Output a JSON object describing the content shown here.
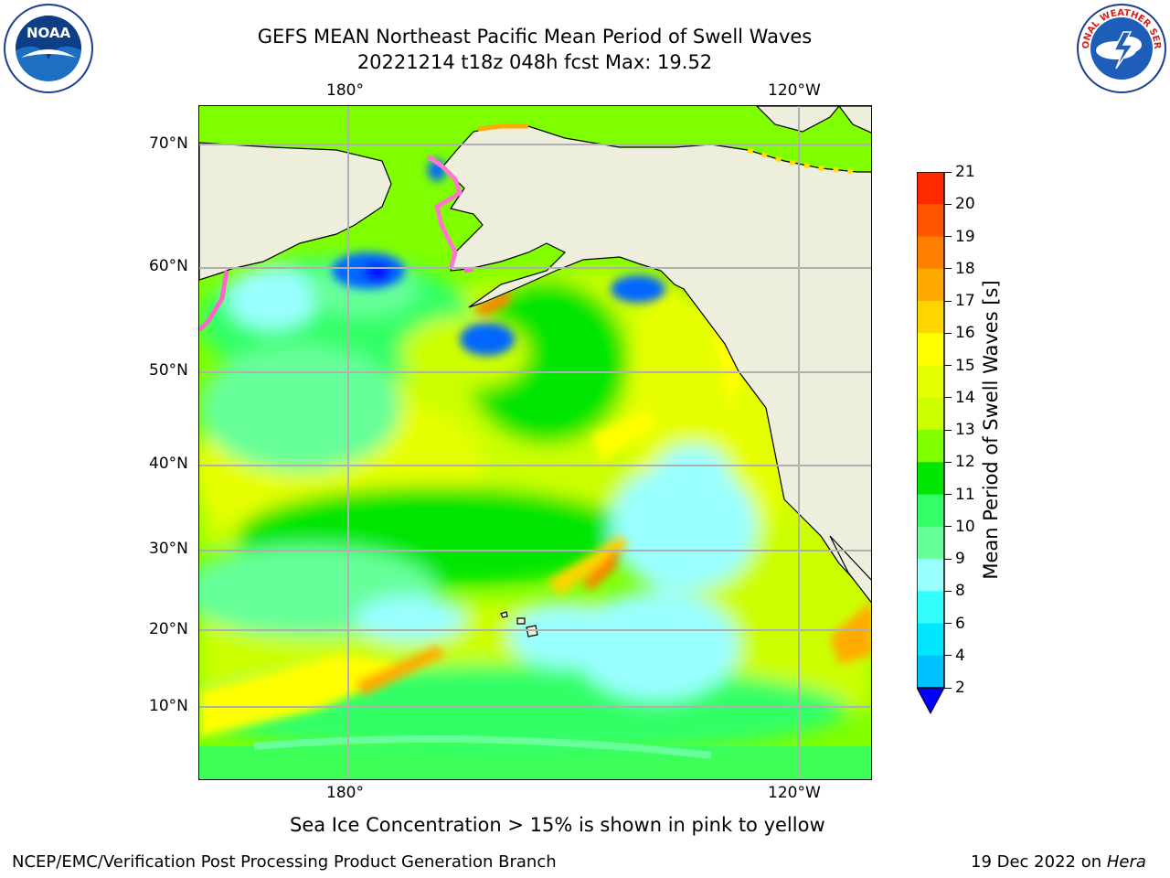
{
  "header": {
    "title_line1": "GEFS MEAN Northeast Pacific Mean Period of Swell Waves",
    "title_line2": "20221214 t18z 048h fcst   Max: 19.52",
    "left_logo_text": "NOAA",
    "left_logo_ring": "NATIONAL OCEANIC AND ATMOSPHERIC ADMINISTRATION · U.S. DEPARTMENT OF COMMERCE",
    "right_logo_ring": "NATIONAL WEATHER SERVICE"
  },
  "map": {
    "lon_labels_top": [
      "180°",
      "120°W"
    ],
    "lon_labels_bottom": [
      "180°",
      "120°W"
    ],
    "lat_labels": [
      "70°N",
      "60°N",
      "50°N",
      "40°N",
      "30°N",
      "20°N",
      "10°N"
    ],
    "land_color": "#eeeedd",
    "grid_color": "#b0b0b0",
    "ice_note": "Sea Ice Concentration > 15% is shown in pink to yellow"
  },
  "colorbar": {
    "label": "Mean Period of Swell Waves [s]",
    "ticks": [
      "21",
      "20",
      "19",
      "18",
      "17",
      "16",
      "15",
      "14",
      "13",
      "12",
      "11",
      "10",
      "9",
      "8",
      "6",
      "4",
      "2"
    ],
    "colors": [
      "#ff0000",
      "#ff2a00",
      "#ff5500",
      "#ff7f00",
      "#ffaa00",
      "#ffd500",
      "#ffff00",
      "#e6ff00",
      "#ccff00",
      "#80ff00",
      "#00e600",
      "#33ff66",
      "#66ff99",
      "#99ffff",
      "#33ffff",
      "#00e6ff",
      "#00bfff",
      "#0066ff"
    ],
    "extend_color": "#0000ff"
  },
  "footer": {
    "left": "NCEP/EMC/Verification Post Processing Product Generation Branch",
    "right_date": "19 Dec 2022 on ",
    "right_host": "Hera"
  }
}
